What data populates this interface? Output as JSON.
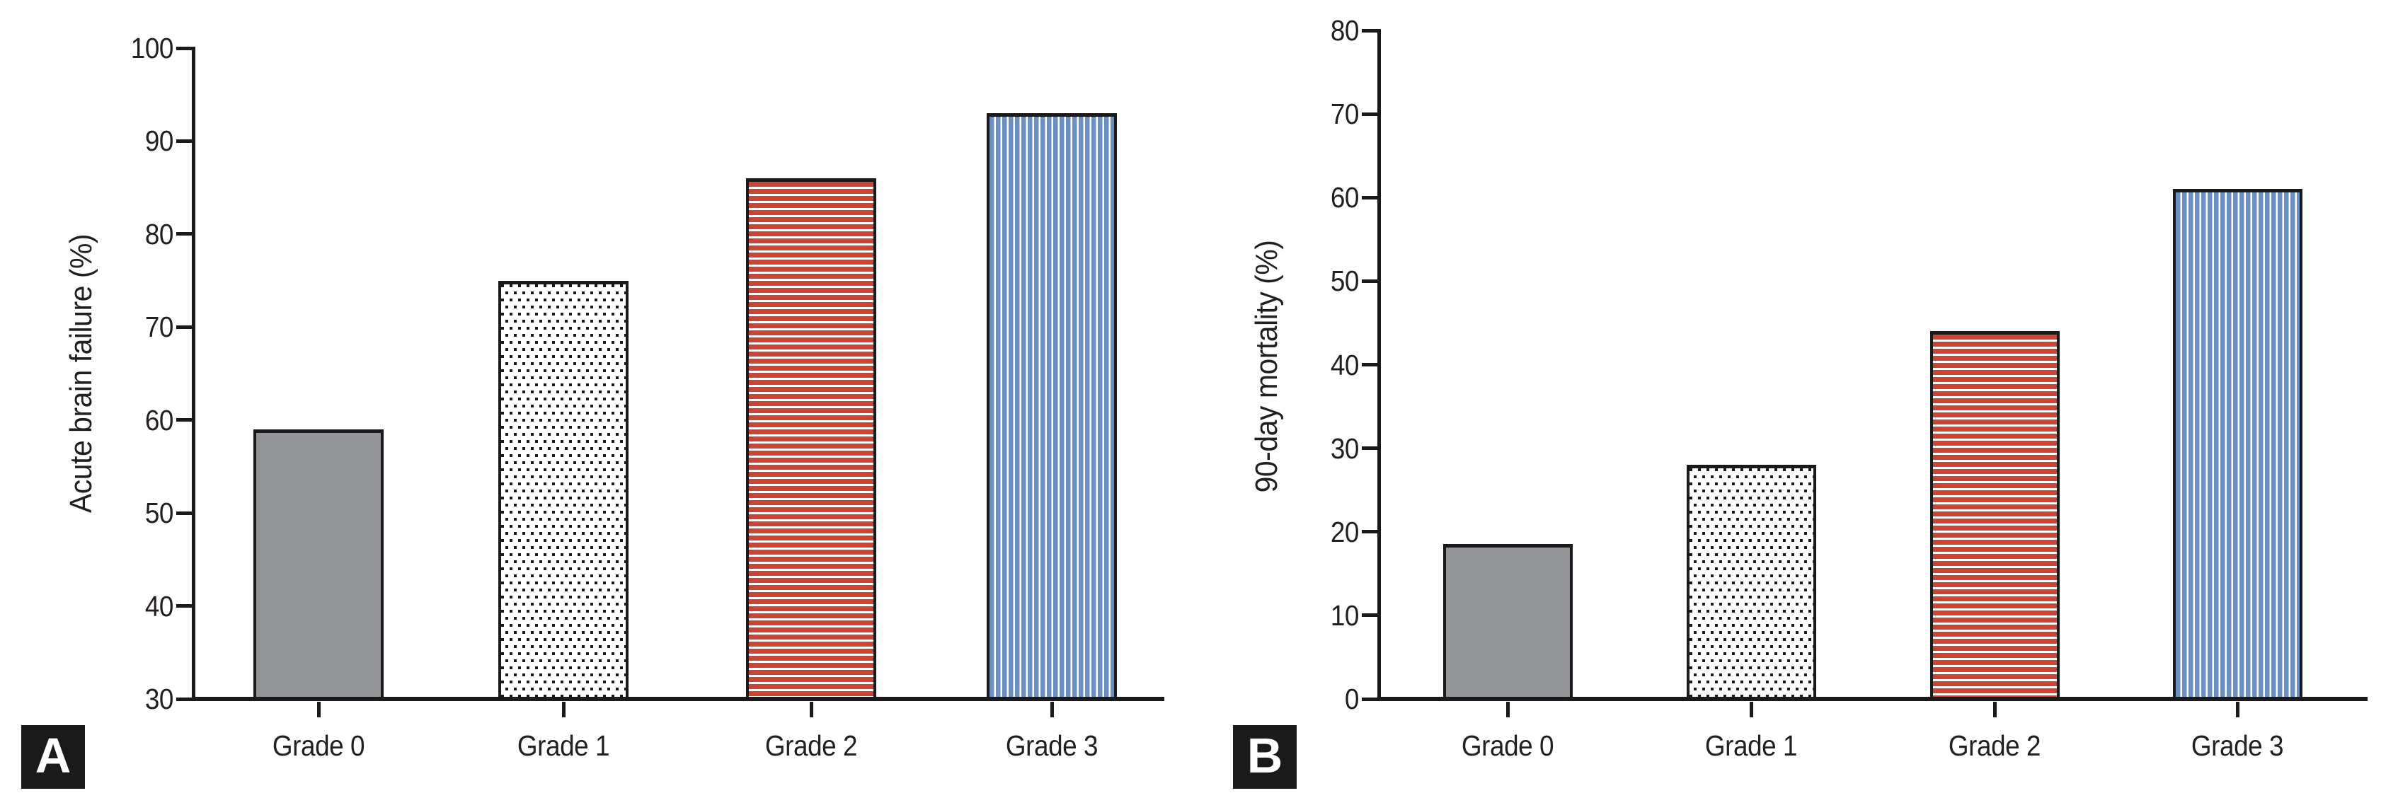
{
  "page": {
    "background": "#ffffff",
    "text_color": "#231f20",
    "axis_color": "#1a1a1a",
    "badge_text_color": "#ffffff"
  },
  "chart_data": [
    {
      "type": "bar",
      "panel_label": "A",
      "ylabel": "Acute brain failure (%)",
      "xlabel": "",
      "title": "",
      "categories": [
        "Grade 0",
        "Grade 1",
        "Grade 2",
        "Grade 3"
      ],
      "values": [
        59,
        75,
        86,
        93
      ],
      "ylim": [
        30,
        100
      ],
      "yticks": [
        30,
        40,
        50,
        60,
        70,
        80,
        90,
        100
      ],
      "grid": false,
      "legend": "none",
      "bar_styles": [
        {
          "name": "solid",
          "fill": "#949598"
        },
        {
          "name": "checker-dots",
          "fill": "#ffffff",
          "dot": "#1a1a1a"
        },
        {
          "name": "h-stripes",
          "fill": "#ce4432",
          "stripe": "#ffffff"
        },
        {
          "name": "v-stripes",
          "fill": "#6a8fc2",
          "stripe": "#ffffff"
        }
      ]
    },
    {
      "type": "bar",
      "panel_label": "B",
      "ylabel": "90-day mortality (%)",
      "xlabel": "",
      "title": "",
      "categories": [
        "Grade 0",
        "Grade 1",
        "Grade 2",
        "Grade 3"
      ],
      "values": [
        18.5,
        28,
        44,
        61
      ],
      "ylim": [
        0,
        80
      ],
      "yticks": [
        0,
        10,
        20,
        30,
        40,
        50,
        60,
        70,
        80
      ],
      "grid": false,
      "legend": "none",
      "bar_styles": [
        {
          "name": "solid",
          "fill": "#949598"
        },
        {
          "name": "checker-dots",
          "fill": "#ffffff",
          "dot": "#1a1a1a"
        },
        {
          "name": "h-stripes",
          "fill": "#ce4432",
          "stripe": "#ffffff"
        },
        {
          "name": "v-stripes",
          "fill": "#6a8fc2",
          "stripe": "#ffffff"
        }
      ]
    }
  ]
}
